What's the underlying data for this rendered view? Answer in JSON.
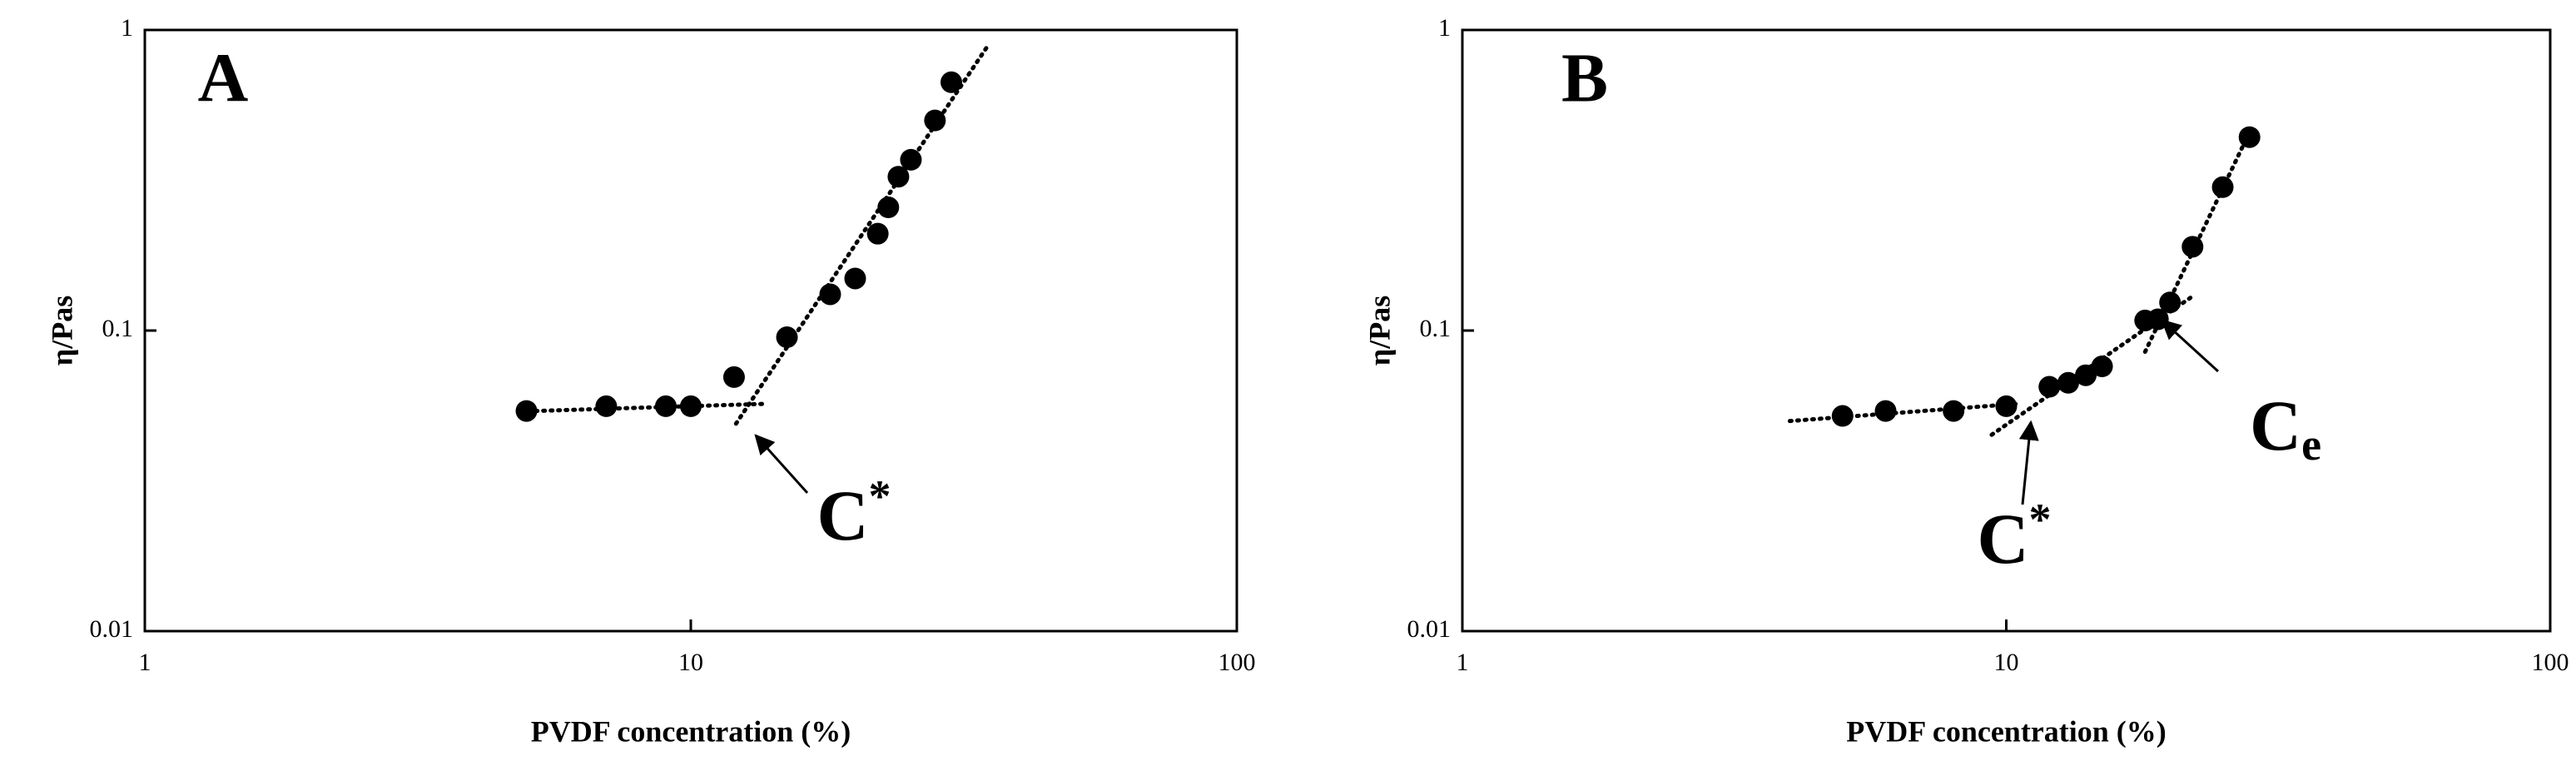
{
  "chart_data": [
    {
      "type": "scatter",
      "panel_label": "A",
      "x_label": "PVDF concentration (%)",
      "y_label": "η/Pas",
      "xlog": true,
      "ylog": true,
      "xlim": [
        1,
        100
      ],
      "ylim": [
        0.01,
        1
      ],
      "xticks": [
        1,
        10,
        100
      ],
      "yticks": [
        0.01,
        0.1,
        1
      ],
      "color": "#000000",
      "x": [
        5,
        7,
        9,
        10,
        12,
        15,
        18,
        20,
        22,
        23,
        24,
        25.3,
        28,
        30
      ],
      "values": [
        0.054,
        0.056,
        0.056,
        0.056,
        0.07,
        0.095,
        0.132,
        0.149,
        0.21,
        0.257,
        0.325,
        0.37,
        0.5,
        0.67
      ],
      "fit_lines": [
        {
          "x": [
            5.2,
            13.5
          ],
          "y": [
            0.054,
            0.057
          ]
        },
        {
          "x": [
            12.1,
            34.9
          ],
          "y": [
            0.049,
            0.88
          ]
        }
      ],
      "annotations": [
        {
          "base": "C",
          "sup": "*"
        }
      ]
    },
    {
      "type": "scatter",
      "panel_label": "B",
      "x_label": "PVDF concentration (%)",
      "y_label": "η/Pas",
      "xlog": true,
      "ylog": true,
      "xlim": [
        1,
        100
      ],
      "ylim": [
        0.01,
        1
      ],
      "xticks": [
        1,
        10,
        100
      ],
      "yticks": [
        0.01,
        0.1,
        1
      ],
      "color": "#000000",
      "x": [
        5,
        6,
        8,
        10,
        12,
        13,
        14,
        15,
        18,
        19,
        20,
        22,
        25,
        28
      ],
      "values": [
        0.052,
        0.054,
        0.054,
        0.056,
        0.065,
        0.067,
        0.071,
        0.076,
        0.108,
        0.109,
        0.124,
        0.19,
        0.3,
        0.44
      ],
      "fit_lines": [
        {
          "x": [
            4,
            10.4
          ],
          "y": [
            0.05,
            0.057
          ]
        },
        {
          "x": [
            9.4,
            22
          ],
          "y": [
            0.045,
            0.13
          ]
        },
        {
          "x": [
            18,
            28.2
          ],
          "y": [
            0.085,
            0.47
          ]
        }
      ],
      "annotations": [
        {
          "base": "C",
          "sup": "*"
        },
        {
          "base": "C",
          "sub": "e"
        }
      ]
    }
  ]
}
